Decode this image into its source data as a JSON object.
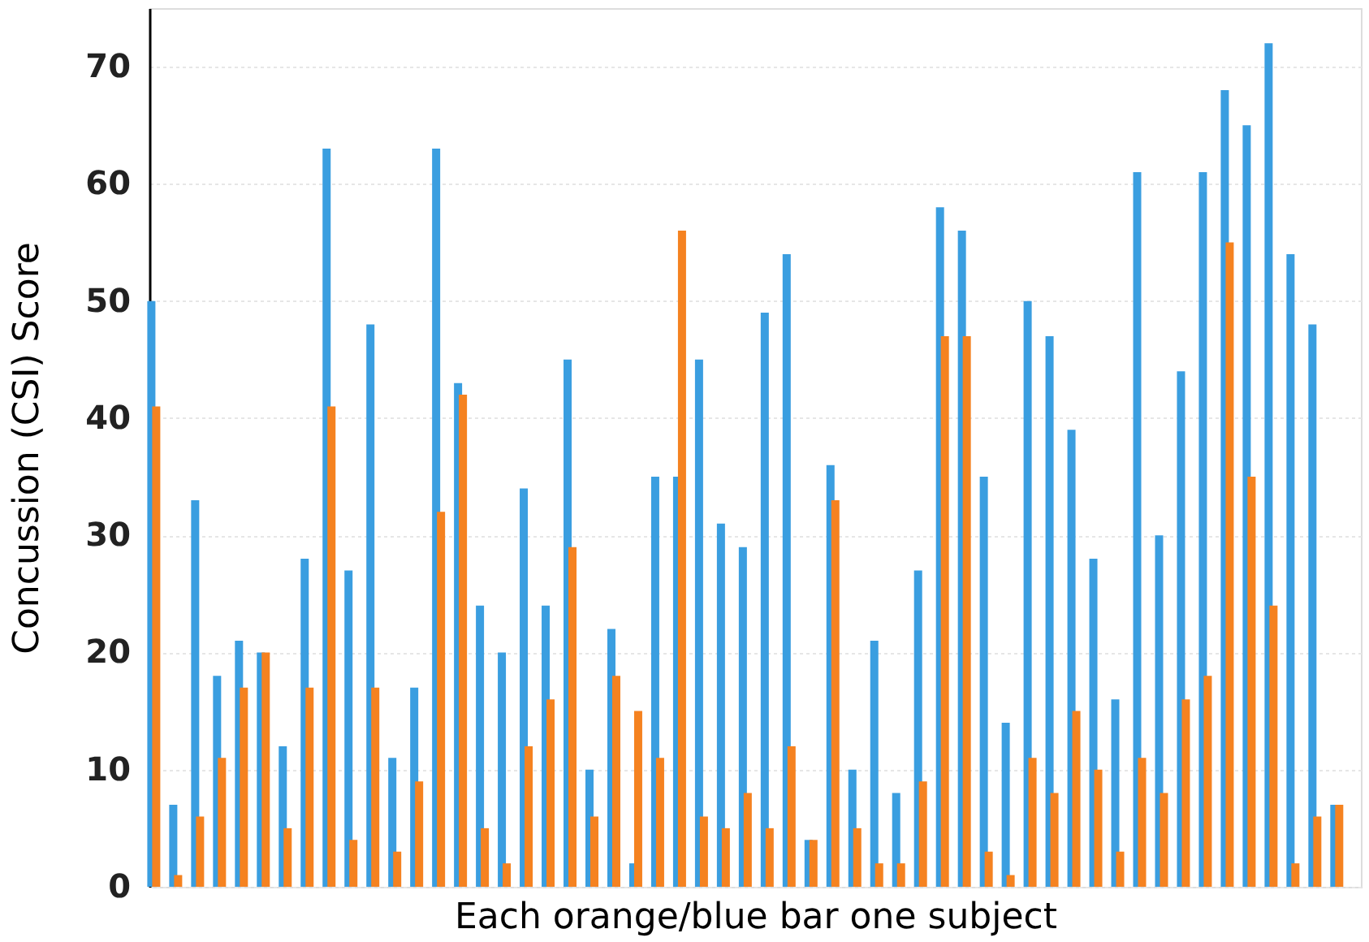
{
  "chart_data": {
    "type": "bar",
    "xlabel": "Each orange/blue bar one subject",
    "ylabel": "Concussion (CSI) Score",
    "categories": [
      null,
      null,
      null,
      null,
      null,
      null,
      null,
      null,
      null,
      null,
      null,
      null,
      null,
      null,
      null,
      null,
      null,
      null,
      null,
      null,
      null,
      null,
      null,
      null,
      null,
      null,
      null,
      null,
      null,
      null,
      null,
      null,
      null,
      null,
      null,
      null,
      null,
      null,
      null,
      null,
      null,
      null,
      null,
      null,
      null,
      null,
      null,
      null,
      null,
      null,
      null,
      null,
      null,
      null,
      null
    ],
    "series": [
      {
        "color": "#3a9ee0",
        "values": [
          50,
          7,
          33,
          18,
          21,
          20,
          12,
          28,
          63,
          27,
          48,
          11,
          17,
          63,
          43,
          24,
          20,
          34,
          24,
          45,
          10,
          22,
          2,
          35,
          35,
          45,
          31,
          29,
          49,
          54,
          4,
          36,
          10,
          21,
          8,
          27,
          58,
          56,
          35,
          14,
          50,
          47,
          39,
          28,
          16,
          61,
          30,
          44,
          61,
          68,
          65,
          72,
          54,
          48,
          7
        ]
      },
      {
        "color": "#f58220",
        "values": [
          41,
          1,
          6,
          11,
          17,
          20,
          5,
          17,
          41,
          4,
          17,
          3,
          9,
          32,
          42,
          5,
          2,
          12,
          16,
          29,
          6,
          18,
          15,
          11,
          56,
          6,
          5,
          8,
          5,
          12,
          4,
          33,
          5,
          2,
          2,
          9,
          47,
          47,
          3,
          1,
          11,
          8,
          15,
          10,
          3,
          11,
          8,
          16,
          18,
          55,
          35,
          24,
          2,
          6,
          7
        ]
      }
    ],
    "ylim": [
      0,
      75
    ],
    "yticks": [
      0,
      10,
      20,
      30,
      40,
      50,
      60,
      70
    ],
    "grid": "y",
    "tick_labels": "y",
    "legend": false
  }
}
